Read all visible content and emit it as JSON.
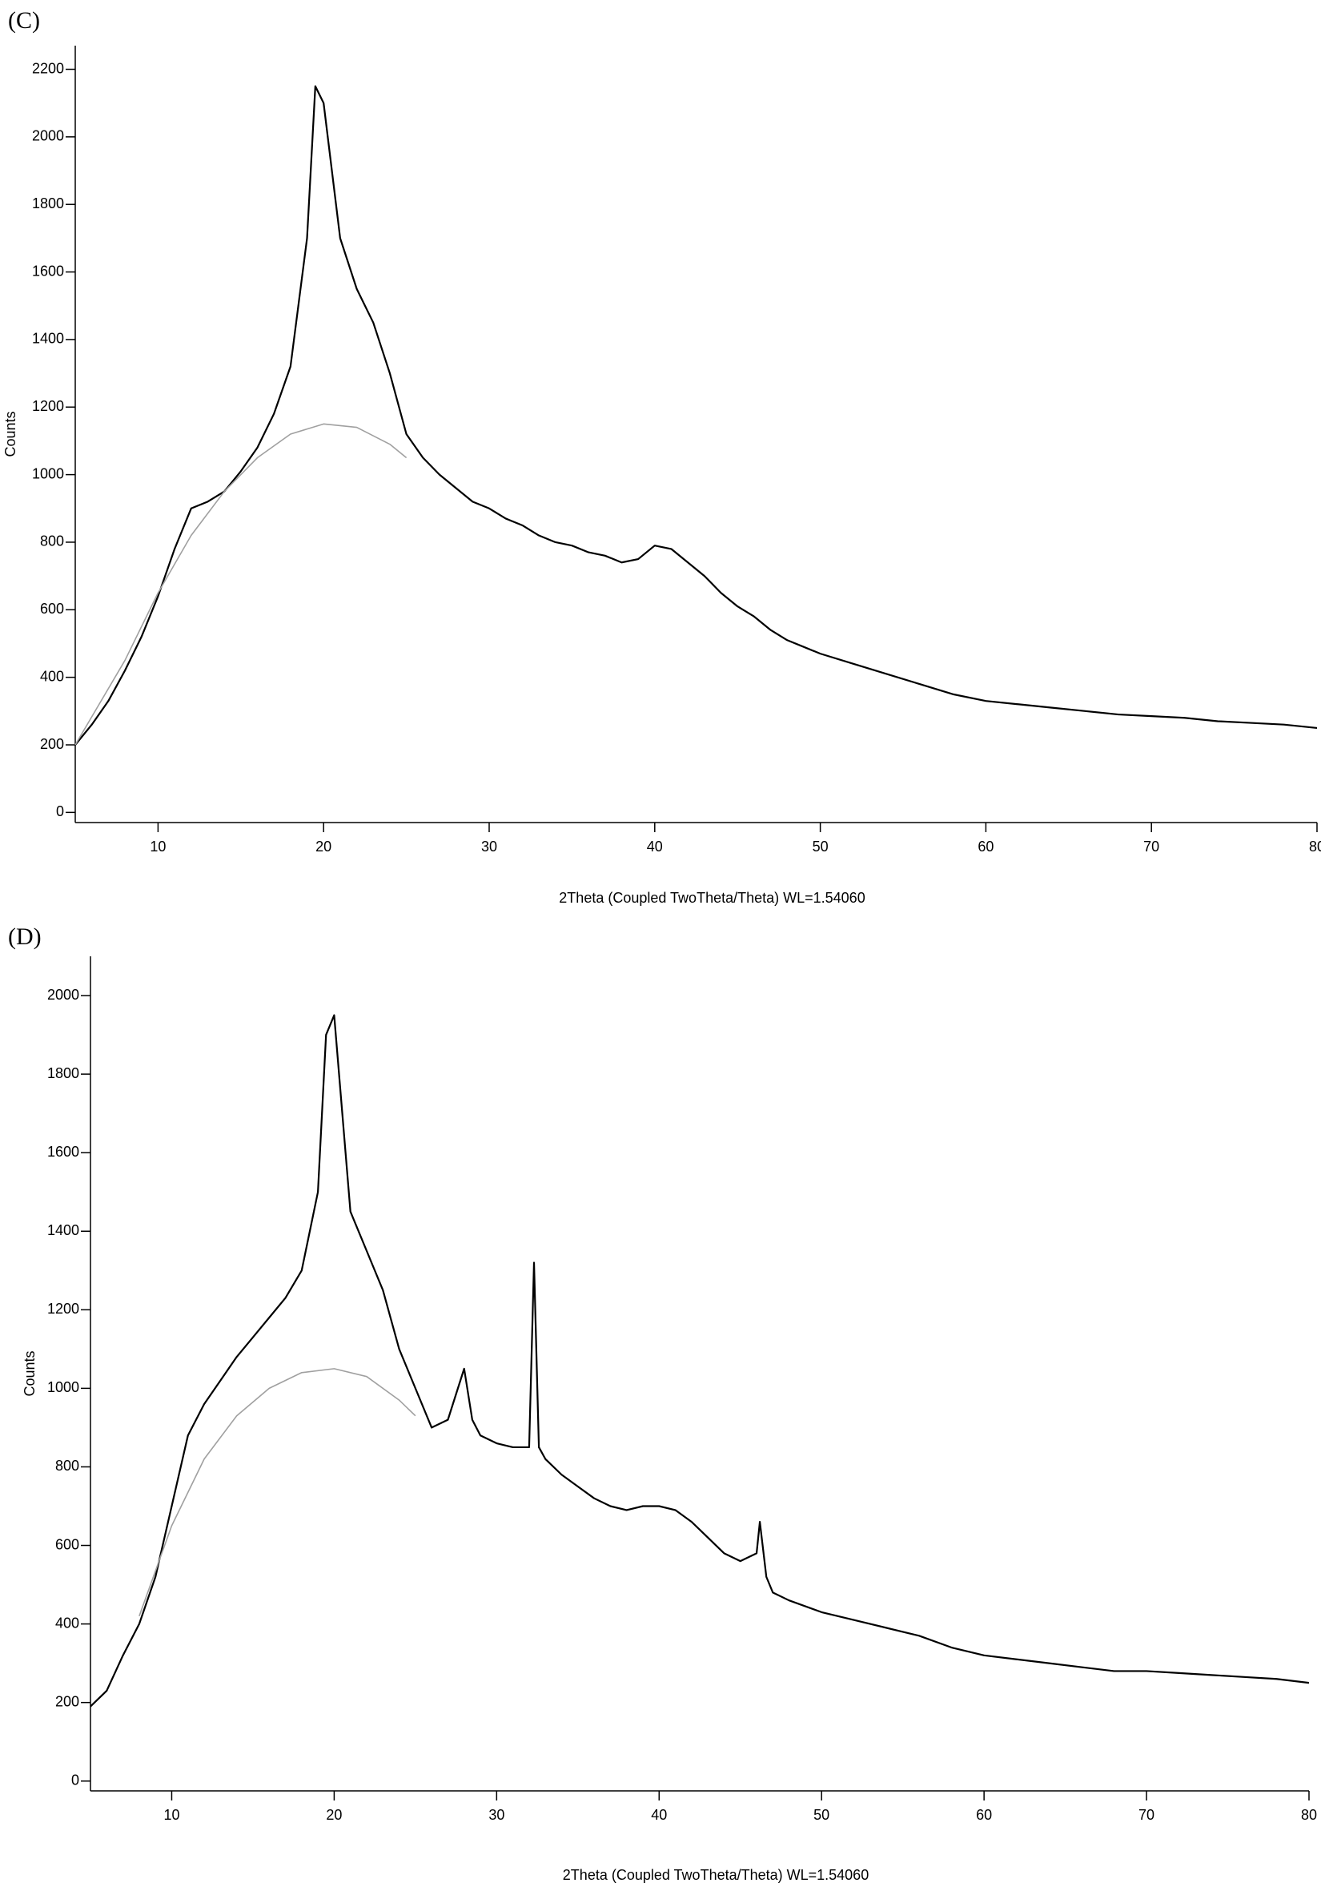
{
  "chart_data": [
    {
      "type": "line",
      "title": "(C)",
      "xlabel": "2Theta (Coupled TwoTheta/Theta) WL=1.54060",
      "ylabel": "Counts",
      "xlim": [
        5,
        80
      ],
      "ylim": [
        -30,
        2270
      ],
      "xticks": [
        10,
        20,
        30,
        40,
        50,
        60,
        70,
        80
      ],
      "yticks": [
        0,
        200,
        400,
        600,
        800,
        1000,
        1200,
        1400,
        1600,
        1800,
        2000,
        2200
      ],
      "series": [
        {
          "color": "#000000",
          "x": [
            5,
            6,
            7,
            8,
            9,
            10,
            11,
            12,
            13,
            14,
            15,
            16,
            17,
            18,
            19,
            19.5,
            20,
            21,
            22,
            23,
            24,
            25,
            26,
            27,
            28,
            29,
            30,
            31,
            32,
            33,
            34,
            35,
            36,
            37,
            38,
            39,
            40,
            41,
            42,
            43,
            44,
            45,
            46,
            47,
            48,
            49,
            50,
            52,
            54,
            56,
            58,
            60,
            62,
            64,
            66,
            68,
            70,
            72,
            74,
            76,
            78,
            80
          ],
          "values": [
            200,
            260,
            330,
            420,
            520,
            640,
            780,
            900,
            920,
            950,
            1010,
            1080,
            1180,
            1320,
            1700,
            2150,
            2100,
            1700,
            1550,
            1450,
            1300,
            1120,
            1050,
            1000,
            960,
            920,
            900,
            870,
            850,
            820,
            800,
            790,
            770,
            760,
            740,
            750,
            790,
            780,
            740,
            700,
            650,
            610,
            580,
            540,
            510,
            490,
            470,
            440,
            410,
            380,
            350,
            330,
            320,
            310,
            300,
            290,
            285,
            280,
            270,
            265,
            260,
            250
          ]
        },
        {
          "color": "#a0a0a0",
          "x": [
            5,
            8,
            10,
            12,
            14,
            16,
            18,
            20,
            22,
            24,
            25
          ],
          "values": [
            200,
            450,
            650,
            820,
            950,
            1050,
            1120,
            1150,
            1140,
            1090,
            1050
          ]
        }
      ]
    },
    {
      "type": "line",
      "title": "(D)",
      "xlabel": "2Theta (Coupled TwoTheta/Theta) WL=1.54060",
      "ylabel": "Counts",
      "xlim": [
        5,
        80
      ],
      "ylim": [
        -25,
        2100
      ],
      "xticks": [
        10,
        20,
        30,
        40,
        50,
        60,
        70,
        80
      ],
      "yticks": [
        0,
        200,
        400,
        600,
        800,
        1000,
        1200,
        1400,
        1600,
        1800,
        2000
      ],
      "series": [
        {
          "color": "#000000",
          "x": [
            5,
            6,
            7,
            8,
            9,
            10,
            11,
            12,
            13,
            14,
            15,
            16,
            17,
            18,
            19,
            19.5,
            20,
            20.5,
            21,
            22,
            23,
            24,
            25,
            26,
            27,
            28,
            28.5,
            29,
            30,
            31,
            32,
            32.3,
            32.6,
            33,
            34,
            35,
            36,
            37,
            38,
            39,
            40,
            41,
            42,
            43,
            44,
            45,
            46,
            46.2,
            46.6,
            47,
            48,
            50,
            52,
            54,
            56,
            58,
            60,
            62,
            64,
            66,
            68,
            70,
            72,
            74,
            76,
            78,
            80
          ],
          "values": [
            190,
            230,
            320,
            400,
            520,
            700,
            880,
            960,
            1020,
            1080,
            1130,
            1180,
            1230,
            1300,
            1500,
            1900,
            1950,
            1700,
            1450,
            1350,
            1250,
            1100,
            1000,
            900,
            920,
            1050,
            920,
            880,
            860,
            850,
            850,
            1320,
            850,
            820,
            780,
            750,
            720,
            700,
            690,
            700,
            700,
            690,
            660,
            620,
            580,
            560,
            580,
            660,
            520,
            480,
            460,
            430,
            410,
            390,
            370,
            340,
            320,
            310,
            300,
            290,
            280,
            280,
            275,
            270,
            265,
            260,
            250
          ]
        },
        {
          "color": "#a0a0a0",
          "x": [
            8,
            10,
            12,
            14,
            16,
            18,
            20,
            22,
            24,
            25
          ],
          "values": [
            420,
            650,
            820,
            930,
            1000,
            1040,
            1050,
            1030,
            970,
            930
          ]
        }
      ]
    }
  ]
}
